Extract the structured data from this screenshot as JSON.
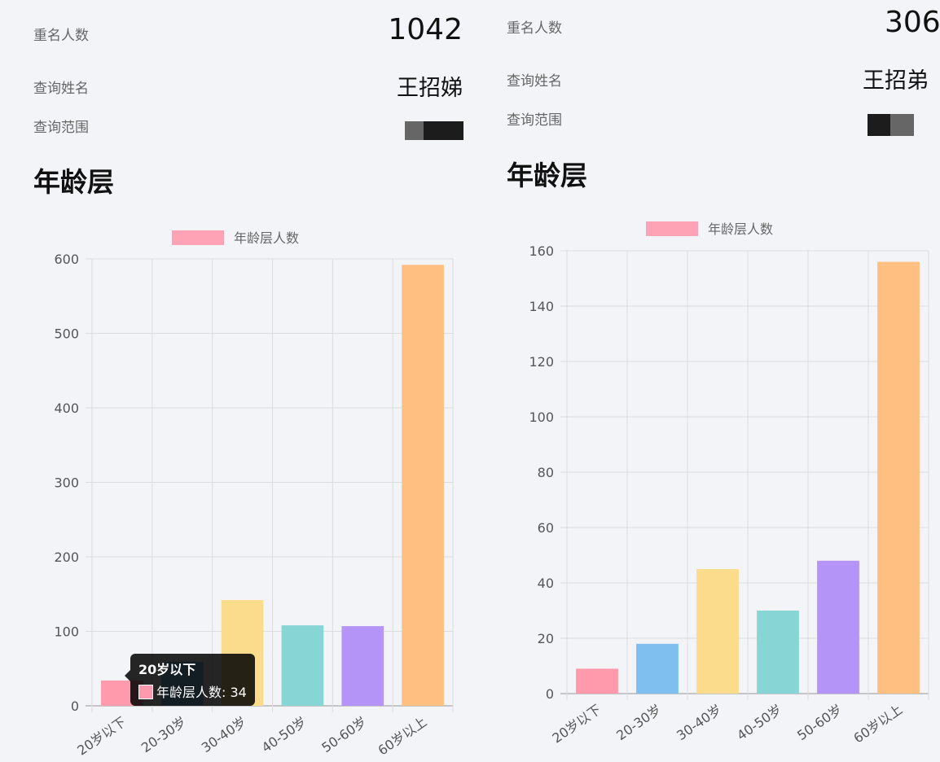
{
  "panels": [
    {
      "dup_label": "重名人数",
      "dup_count": "1042",
      "name_label": "查询姓名",
      "name_value": "王招娣",
      "range_label": "查询范围",
      "section_title": "年龄层",
      "tooltip": {
        "title": "20岁以下",
        "series": "年龄层人数",
        "value": "34"
      }
    },
    {
      "dup_label": "重名人数",
      "dup_count": "306",
      "name_label": "查询姓名",
      "name_value": "王招弟",
      "range_label": "查询范围",
      "section_title": "年龄层"
    }
  ],
  "chart_data": [
    {
      "type": "bar",
      "categories": [
        "20岁以下",
        "20-30岁",
        "30-40岁",
        "40-50岁",
        "50-60岁",
        "60岁以上"
      ],
      "series": [
        {
          "name": "年龄层人数",
          "values": [
            34,
            59,
            142,
            108,
            107,
            592
          ]
        }
      ],
      "colors": [
        "#ff9aad",
        "#7fbff0",
        "#fbdc8c",
        "#88d5d6",
        "#b495f7",
        "#ffbf80"
      ],
      "yticks": [
        "0",
        "100",
        "200",
        "300",
        "400",
        "500",
        "600"
      ],
      "ylim": [
        0,
        600
      ],
      "grid": true,
      "legend": "top-center"
    },
    {
      "type": "bar",
      "categories": [
        "20岁以下",
        "20-30岁",
        "30-40岁",
        "40-50岁",
        "50-60岁",
        "60岁以上"
      ],
      "series": [
        {
          "name": "年龄层人数",
          "values": [
            9,
            18,
            45,
            30,
            48,
            156
          ]
        }
      ],
      "colors": [
        "#ff9aad",
        "#7fbff0",
        "#fbdc8c",
        "#88d5d6",
        "#b495f7",
        "#ffbf80"
      ],
      "yticks": [
        "0",
        "20",
        "40",
        "60",
        "80",
        "100",
        "120",
        "140",
        "160"
      ],
      "ylim": [
        0,
        160
      ],
      "grid": true,
      "legend": "top-center"
    }
  ]
}
